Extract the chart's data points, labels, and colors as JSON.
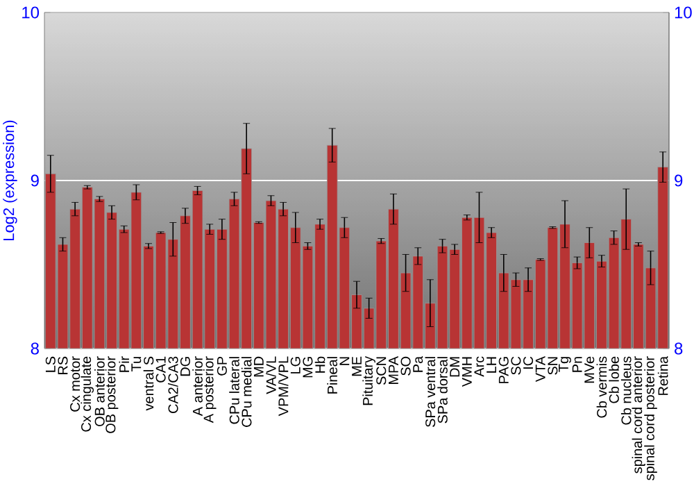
{
  "chart_data": {
    "type": "bar",
    "ylabel": "Log2 (expression)",
    "categories": [
      "LS",
      "RS",
      "Cx motor",
      "Cx cingulate",
      "OB anterior",
      "OB posterior",
      "Pir",
      "Tu",
      "ventral S",
      "CA1",
      "CA2/CA3",
      "DG",
      "A anterior",
      "A posterior",
      "GP",
      "CPu lateral",
      "CPu medial",
      "MD",
      "VA/VL",
      "VPM/VPL",
      "LG",
      "MG",
      "Hb",
      "Pineal",
      "N",
      "ME",
      "Pituitary",
      "SCN",
      "MPA",
      "SO",
      "Pa",
      "SPa ventral",
      "SPa dorsal",
      "DM",
      "VMH",
      "Arc",
      "LH",
      "PAG",
      "SC",
      "IC",
      "VTA",
      "SN",
      "Tg",
      "Pn",
      "MVe",
      "Cb vermis",
      "Cb lobe",
      "Cb nucleus",
      "spinal cord anterior",
      "spinal cord posterior",
      "Retina"
    ],
    "values": [
      9.04,
      8.62,
      8.83,
      8.96,
      8.89,
      8.81,
      8.71,
      8.93,
      8.61,
      8.69,
      8.65,
      8.79,
      8.94,
      8.71,
      8.71,
      8.89,
      9.19,
      8.75,
      8.88,
      8.83,
      8.72,
      8.61,
      8.74,
      9.21,
      8.72,
      8.32,
      8.24,
      8.64,
      8.83,
      8.45,
      8.55,
      8.27,
      8.61,
      8.59,
      8.78,
      8.78,
      8.69,
      8.45,
      8.41,
      8.41,
      8.53,
      8.72,
      8.74,
      8.51,
      8.63,
      8.52,
      8.66,
      8.77,
      8.62,
      8.48,
      9.08
    ],
    "errors": [
      0.11,
      0.04,
      0.04,
      0.01,
      0.015,
      0.04,
      0.02,
      0.045,
      0.015,
      0.005,
      0.1,
      0.045,
      0.025,
      0.03,
      0.06,
      0.04,
      0.15,
      0.005,
      0.03,
      0.04,
      0.09,
      0.02,
      0.03,
      0.1,
      0.06,
      0.08,
      0.06,
      0.015,
      0.09,
      0.11,
      0.05,
      0.14,
      0.04,
      0.03,
      0.015,
      0.15,
      0.03,
      0.11,
      0.04,
      0.07,
      0.005,
      0.005,
      0.14,
      0.035,
      0.09,
      0.035,
      0.04,
      0.18,
      0.01,
      0.1,
      0.09
    ],
    "color": "#b83434",
    "ylim": [
      8,
      10
    ],
    "yticks": [
      8,
      9,
      10
    ],
    "y2lim": [
      8,
      10
    ],
    "y2ticks": [
      8,
      9,
      10
    ],
    "grid": "y"
  }
}
